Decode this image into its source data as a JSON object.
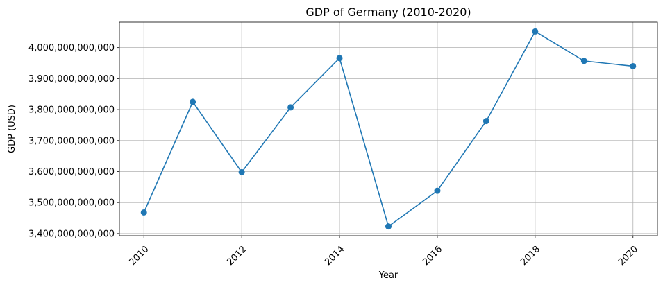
{
  "chart_data": {
    "type": "line",
    "title": "GDP of Germany (2010-2020)",
    "xlabel": "Year",
    "ylabel": "GDP (USD)",
    "x": [
      2010,
      2011,
      2012,
      2013,
      2014,
      2015,
      2016,
      2017,
      2018,
      2019,
      2020
    ],
    "series": [
      {
        "values": [
          3468000000000,
          3825000000000,
          3598000000000,
          3807000000000,
          3966000000000,
          3423000000000,
          3538000000000,
          3763000000000,
          4052000000000,
          3957000000000,
          3940000000000
        ],
        "color": "#1f77b4",
        "marker": "circle"
      }
    ],
    "xlim": [
      2009.5,
      2020.5
    ],
    "ylim": [
      3393000000000,
      4082000000000
    ],
    "xticks": [
      2010,
      2012,
      2014,
      2016,
      2018,
      2020
    ],
    "xtick_labels": [
      "2010",
      "2012",
      "2014",
      "2016",
      "2018",
      "2020"
    ],
    "yticks": [
      3400000000000,
      3500000000000,
      3600000000000,
      3700000000000,
      3800000000000,
      3900000000000,
      4000000000000
    ],
    "ytick_labels": [
      "3,400,000,000,000",
      "3,500,000,000,000",
      "3,600,000,000,000",
      "3,700,000,000,000",
      "3,800,000,000,000",
      "3,900,000,000,000",
      "4,000,000,000,000"
    ],
    "grid": true,
    "legend": "none"
  }
}
